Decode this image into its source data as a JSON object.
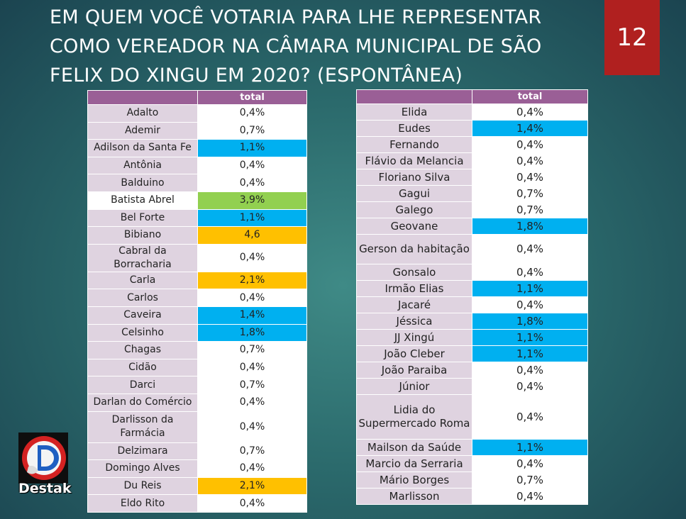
{
  "title": "EM QUEM VOCÊ VOTARIA PARA LHE REPRESENTAR COMO VEREADOR NA CÂMARA MUNICIPAL DE SÃO FELIX DO XINGU EM 2020? (ESPONTÂNEA)",
  "page_number": "12",
  "logo": {
    "text": "Destak",
    "icon": "destak-logo-icon"
  },
  "colors": {
    "header": "#9a5f96",
    "blue": "#00b0f0",
    "green": "#92d050",
    "orange": "#ffc000"
  },
  "left_table": {
    "header": [
      "",
      "total"
    ],
    "rows": [
      {
        "name": "Adalto",
        "value": "0,4%",
        "hl": ""
      },
      {
        "name": "Ademir",
        "value": "0,7%",
        "hl": ""
      },
      {
        "name": "Adilson da Santa Fe",
        "value": "1,1%",
        "hl": "blue"
      },
      {
        "name": "Antônia",
        "value": "0,4%",
        "hl": ""
      },
      {
        "name": "Balduino",
        "value": "0,4%",
        "hl": ""
      },
      {
        "name": "Batista Abrel",
        "value": "3,9%",
        "hl": "green"
      },
      {
        "name": "Bel Forte",
        "value": "1,1%",
        "hl": "blue"
      },
      {
        "name": "Bibiano",
        "value": "4,6",
        "hl": "orange"
      },
      {
        "name": "Cabral da Borracharia",
        "value": "0,4%",
        "hl": ""
      },
      {
        "name": "Carla",
        "value": "2,1%",
        "hl": "orange"
      },
      {
        "name": "Carlos",
        "value": "0,4%",
        "hl": ""
      },
      {
        "name": "Caveira",
        "value": "1,4%",
        "hl": "blue"
      },
      {
        "name": "Celsinho",
        "value": "1,8%",
        "hl": "blue"
      },
      {
        "name": "Chagas",
        "value": "0,7%",
        "hl": ""
      },
      {
        "name": "Cidão",
        "value": "0,4%",
        "hl": ""
      },
      {
        "name": "Darci",
        "value": "0,7%",
        "hl": ""
      },
      {
        "name": "Darlan do Comércio",
        "value": "0,4%",
        "hl": ""
      },
      {
        "name": "Darlisson da Farmácia",
        "value": "0,4%",
        "hl": ""
      },
      {
        "name": "Delzimara",
        "value": "0,7%",
        "hl": ""
      },
      {
        "name": "Domingo Alves",
        "value": "0,4%",
        "hl": ""
      },
      {
        "name": "Du Reis",
        "value": "2,1%",
        "hl": "orange"
      },
      {
        "name": "Eldo Rito",
        "value": "0,4%",
        "hl": ""
      }
    ]
  },
  "right_table": {
    "header": [
      "",
      "total"
    ],
    "rows": [
      {
        "name": "Elida",
        "value": "0,4%",
        "hl": ""
      },
      {
        "name": "Eudes",
        "value": "1,4%",
        "hl": "blue"
      },
      {
        "name": "Fernando",
        "value": "0,4%",
        "hl": ""
      },
      {
        "name": "Flávio da Melancia",
        "value": "0,4%",
        "hl": ""
      },
      {
        "name": "Floriano Silva",
        "value": "0,4%",
        "hl": ""
      },
      {
        "name": "Gagui",
        "value": "0,7%",
        "hl": ""
      },
      {
        "name": "Galego",
        "value": "0,7%",
        "hl": ""
      },
      {
        "name": "Geovane",
        "value": "1,8%",
        "hl": "blue"
      },
      {
        "name": "Gerson da habitação",
        "value": "0,4%",
        "hl": ""
      },
      {
        "name": "Gonsalo",
        "value": "0,4%",
        "hl": ""
      },
      {
        "name": "Irmão Elias",
        "value": "1,1%",
        "hl": "blue"
      },
      {
        "name": "Jacaré",
        "value": "0,4%",
        "hl": ""
      },
      {
        "name": "Jéssica",
        "value": "1,8%",
        "hl": "blue"
      },
      {
        "name": "JJ Xingú",
        "value": "1,1%",
        "hl": "blue"
      },
      {
        "name": "João Cleber",
        "value": "1,1%",
        "hl": "blue"
      },
      {
        "name": "João Paraiba",
        "value": "0,4%",
        "hl": ""
      },
      {
        "name": "Júnior",
        "value": "0,4%",
        "hl": ""
      },
      {
        "name": "Lidia do Supermercado Roma",
        "value": "0,4%",
        "hl": ""
      },
      {
        "name": "Mailson da Saúde",
        "value": "1,1%",
        "hl": "blue"
      },
      {
        "name": "Marcio da Serraria",
        "value": "0,4%",
        "hl": ""
      },
      {
        "name": "Mário Borges",
        "value": "0,7%",
        "hl": ""
      },
      {
        "name": "Marlisson",
        "value": "0,4%",
        "hl": ""
      }
    ]
  }
}
